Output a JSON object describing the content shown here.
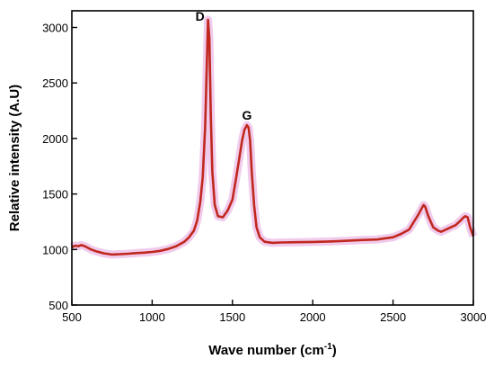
{
  "chart_data": {
    "type": "line",
    "title": "",
    "xlabel": "Wave number (cm",
    "xlabel_sup": "-1",
    "xlabel_end": ")",
    "ylabel": "Relative intensity (A.U)",
    "xlim": [
      500,
      3000
    ],
    "ylim": [
      500,
      3150
    ],
    "x_ticks": [
      "500",
      "1000",
      "1500",
      "2000",
      "2500",
      "3000"
    ],
    "y_ticks": [
      "500",
      "1000",
      "1500",
      "2000",
      "2500",
      "3000"
    ],
    "grid": false,
    "series": [
      {
        "color": "#c0281e",
        "shadow_color": "#e8a8e0",
        "x": [
          500,
          520,
          540,
          560,
          580,
          600,
          620,
          650,
          700,
          750,
          800,
          850,
          900,
          950,
          1000,
          1050,
          1100,
          1150,
          1200,
          1230,
          1260,
          1280,
          1300,
          1315,
          1330,
          1340,
          1348,
          1356,
          1365,
          1375,
          1390,
          1410,
          1440,
          1470,
          1500,
          1520,
          1540,
          1560,
          1575,
          1590,
          1600,
          1610,
          1620,
          1635,
          1650,
          1670,
          1700,
          1750,
          1800,
          1900,
          2000,
          2100,
          2200,
          2300,
          2400,
          2500,
          2550,
          2600,
          2630,
          2660,
          2680,
          2690,
          2700,
          2720,
          2750,
          2780,
          2800,
          2830,
          2860,
          2890,
          2920,
          2940,
          2950,
          2965,
          2980,
          3000
        ],
        "y": [
          1020,
          1035,
          1030,
          1040,
          1030,
          1015,
          1000,
          985,
          965,
          955,
          958,
          962,
          968,
          972,
          978,
          988,
          1005,
          1030,
          1070,
          1110,
          1170,
          1260,
          1430,
          1650,
          2100,
          2650,
          3070,
          2900,
          2200,
          1700,
          1400,
          1300,
          1290,
          1350,
          1450,
          1620,
          1800,
          1980,
          2080,
          2120,
          2100,
          1980,
          1700,
          1400,
          1200,
          1110,
          1070,
          1060,
          1063,
          1066,
          1068,
          1072,
          1078,
          1085,
          1090,
          1110,
          1140,
          1180,
          1250,
          1320,
          1375,
          1400,
          1385,
          1300,
          1200,
          1170,
          1160,
          1180,
          1200,
          1220,
          1260,
          1290,
          1300,
          1290,
          1200,
          1120
        ]
      }
    ],
    "annotations": [
      {
        "text": "D",
        "x": 1270,
        "y": 3060
      },
      {
        "text": "G",
        "x": 1560,
        "y": 2170
      }
    ]
  }
}
